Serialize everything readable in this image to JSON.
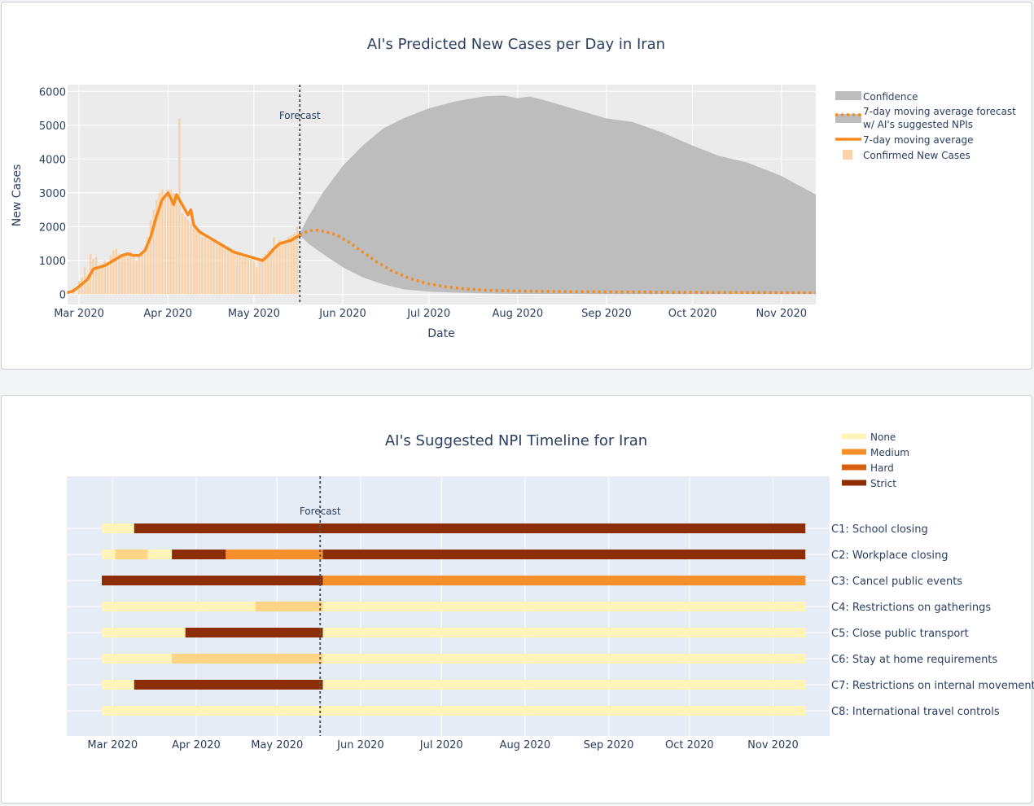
{
  "chart_data": [
    {
      "type": "line",
      "title": "AI's Predicted New Cases per Day in Iran",
      "xlabel": "Date",
      "ylabel": "New Cases",
      "x_range": [
        "2020-02-26",
        "2020-11-13"
      ],
      "ylim": [
        -300,
        6200
      ],
      "yticks": [
        0,
        1000,
        2000,
        3000,
        4000,
        5000,
        6000
      ],
      "xticks": [
        {
          "date": "2020-03-01",
          "label": "Mar 2020"
        },
        {
          "date": "2020-04-01",
          "label": "Apr 2020"
        },
        {
          "date": "2020-05-01",
          "label": "May 2020"
        },
        {
          "date": "2020-06-01",
          "label": "Jun 2020"
        },
        {
          "date": "2020-07-01",
          "label": "Jul 2020"
        },
        {
          "date": "2020-08-01",
          "label": "Aug 2020"
        },
        {
          "date": "2020-09-01",
          "label": "Sep 2020"
        },
        {
          "date": "2020-10-01",
          "label": "Oct 2020"
        },
        {
          "date": "2020-11-01",
          "label": "Nov 2020"
        }
      ],
      "forecast_date": "2020-05-17",
      "forecast_label": "Forecast",
      "grid": true,
      "legend_position": "right",
      "legend": [
        {
          "name": "Confidence",
          "kind": "area"
        },
        {
          "name": "7-day moving average forecast",
          "name_line2": "w/ AI's suggested NPIs",
          "kind": "dotted"
        },
        {
          "name": "7-day moving average",
          "kind": "line"
        },
        {
          "name": "Confirmed New Cases",
          "kind": "bar"
        }
      ],
      "colors": {
        "plot_bg": "#ebebeb",
        "confidence": "#bdbdbd",
        "forecast": "#f58a1f",
        "moving_average": "#f58a1f",
        "bars": "#fad2a9"
      },
      "confirmed_new_cases": {
        "x": [
          "2020-02-26",
          "2020-02-28",
          "2020-03-01",
          "2020-03-02",
          "2020-03-03",
          "2020-03-04",
          "2020-03-05",
          "2020-03-06",
          "2020-03-07",
          "2020-03-08",
          "2020-03-09",
          "2020-03-10",
          "2020-03-11",
          "2020-03-12",
          "2020-03-13",
          "2020-03-14",
          "2020-03-15",
          "2020-03-16",
          "2020-03-17",
          "2020-03-18",
          "2020-03-19",
          "2020-03-20",
          "2020-03-21",
          "2020-03-22",
          "2020-03-23",
          "2020-03-24",
          "2020-03-25",
          "2020-03-26",
          "2020-03-27",
          "2020-03-28",
          "2020-03-29",
          "2020-03-30",
          "2020-03-31",
          "2020-04-01",
          "2020-04-02",
          "2020-04-03",
          "2020-04-04",
          "2020-04-05",
          "2020-04-06",
          "2020-04-07",
          "2020-04-08",
          "2020-04-09",
          "2020-04-10",
          "2020-04-11",
          "2020-04-12",
          "2020-04-13",
          "2020-04-14",
          "2020-04-15",
          "2020-04-16",
          "2020-04-17",
          "2020-04-18",
          "2020-04-19",
          "2020-04-20",
          "2020-04-21",
          "2020-04-22",
          "2020-04-23",
          "2020-04-24",
          "2020-04-25",
          "2020-04-26",
          "2020-04-27",
          "2020-04-28",
          "2020-04-29",
          "2020-04-30",
          "2020-05-01",
          "2020-05-02",
          "2020-05-03",
          "2020-05-04",
          "2020-05-05",
          "2020-05-06",
          "2020-05-07",
          "2020-05-08",
          "2020-05-09",
          "2020-05-10",
          "2020-05-11",
          "2020-05-12",
          "2020-05-13",
          "2020-05-14",
          "2020-05-15",
          "2020-05-16"
        ],
        "values": [
          100,
          200,
          400,
          500,
          800,
          600,
          1200,
          1050,
          1100,
          750,
          900,
          1000,
          950,
          1150,
          1300,
          1350,
          1200,
          1100,
          1150,
          1200,
          1250,
          1100,
          1000,
          1100,
          1200,
          1400,
          1700,
          2200,
          2500,
          2800,
          3000,
          3100,
          2900,
          3100,
          3100,
          3000,
          2900,
          5200,
          2400,
          2300,
          2200,
          2100,
          2000,
          1900,
          1800,
          1700,
          1700,
          1600,
          1650,
          1600,
          1550,
          1500,
          1450,
          1400,
          1350,
          1300,
          1250,
          1200,
          1150,
          1100,
          1100,
          1050,
          1050,
          1000,
          800,
          1000,
          1100,
          1200,
          1300,
          1350,
          1700,
          1500,
          1600,
          1500,
          1600,
          1700,
          1750,
          1800,
          2000
        ]
      },
      "moving_average": {
        "x": [
          "2020-02-26",
          "2020-02-28",
          "2020-03-02",
          "2020-03-04",
          "2020-03-06",
          "2020-03-08",
          "2020-03-10",
          "2020-03-12",
          "2020-03-14",
          "2020-03-16",
          "2020-03-18",
          "2020-03-20",
          "2020-03-22",
          "2020-03-24",
          "2020-03-26",
          "2020-03-28",
          "2020-03-30",
          "2020-04-01",
          "2020-04-02",
          "2020-04-03",
          "2020-04-04",
          "2020-04-05",
          "2020-04-06",
          "2020-04-07",
          "2020-04-08",
          "2020-04-09",
          "2020-04-10",
          "2020-04-11",
          "2020-04-12",
          "2020-04-14",
          "2020-04-16",
          "2020-04-18",
          "2020-04-20",
          "2020-04-22",
          "2020-04-24",
          "2020-04-26",
          "2020-04-28",
          "2020-04-30",
          "2020-05-02",
          "2020-05-04",
          "2020-05-06",
          "2020-05-08",
          "2020-05-10",
          "2020-05-12",
          "2020-05-14",
          "2020-05-16",
          "2020-05-17"
        ],
        "values": [
          50,
          100,
          300,
          450,
          750,
          800,
          850,
          950,
          1050,
          1150,
          1200,
          1150,
          1150,
          1300,
          1700,
          2300,
          2800,
          3000,
          2850,
          2650,
          2950,
          2800,
          2650,
          2500,
          2350,
          2500,
          2050,
          1950,
          1850,
          1750,
          1650,
          1550,
          1450,
          1350,
          1250,
          1200,
          1150,
          1100,
          1050,
          1000,
          1150,
          1350,
          1500,
          1550,
          1600,
          1700,
          1750
        ]
      },
      "forecast": {
        "x": [
          "2020-05-17",
          "2020-05-20",
          "2020-05-23",
          "2020-05-26",
          "2020-05-30",
          "2020-06-03",
          "2020-06-08",
          "2020-06-13",
          "2020-06-18",
          "2020-06-24",
          "2020-06-30",
          "2020-07-06",
          "2020-07-15",
          "2020-07-25",
          "2020-08-05",
          "2020-08-20",
          "2020-09-05",
          "2020-10-01",
          "2020-10-25",
          "2020-11-13"
        ],
        "values": [
          1750,
          1880,
          1900,
          1850,
          1750,
          1550,
          1250,
          950,
          700,
          480,
          330,
          230,
          150,
          110,
          90,
          80,
          70,
          60,
          55,
          50
        ]
      },
      "confidence": {
        "x": [
          "2020-05-17",
          "2020-05-20",
          "2020-05-25",
          "2020-06-01",
          "2020-06-08",
          "2020-06-15",
          "2020-06-22",
          "2020-07-01",
          "2020-07-10",
          "2020-07-20",
          "2020-07-27",
          "2020-08-01",
          "2020-08-05",
          "2020-08-10",
          "2020-08-20",
          "2020-09-01",
          "2020-09-10",
          "2020-09-20",
          "2020-10-01",
          "2020-10-10",
          "2020-10-20",
          "2020-11-01",
          "2020-11-13"
        ],
        "upper": [
          1800,
          2300,
          3000,
          3800,
          4400,
          4900,
          5200,
          5500,
          5700,
          5850,
          5880,
          5800,
          5850,
          5750,
          5500,
          5200,
          5100,
          4800,
          4400,
          4100,
          3900,
          3500,
          2950
        ],
        "lower": [
          1750,
          1500,
          1200,
          800,
          500,
          300,
          150,
          80,
          50,
          30,
          20,
          15,
          15,
          10,
          10,
          5,
          5,
          5,
          5,
          5,
          5,
          5,
          5
        ]
      }
    },
    {
      "type": "timeline",
      "title": "AI's Suggested NPI Timeline for Iran",
      "x_range": [
        "2020-02-13",
        "2020-11-22"
      ],
      "forecast_date": "2020-05-17",
      "forecast_label": "Forecast",
      "xticks": [
        {
          "date": "2020-03-01",
          "label": "Mar 2020"
        },
        {
          "date": "2020-04-01",
          "label": "Apr 2020"
        },
        {
          "date": "2020-05-01",
          "label": "May 2020"
        },
        {
          "date": "2020-06-01",
          "label": "Jun 2020"
        },
        {
          "date": "2020-07-01",
          "label": "Jul 2020"
        },
        {
          "date": "2020-08-01",
          "label": "Aug 2020"
        },
        {
          "date": "2020-09-01",
          "label": "Sep 2020"
        },
        {
          "date": "2020-10-01",
          "label": "Oct 2020"
        },
        {
          "date": "2020-11-01",
          "label": "Nov 2020"
        }
      ],
      "grid": true,
      "legend_position": "top-right",
      "legend": [
        {
          "name": "None",
          "color": "#fff4b8"
        },
        {
          "name": "Medium",
          "color": "#f5902a"
        },
        {
          "name": "Hard",
          "color": "#d65f12"
        },
        {
          "name": "Strict",
          "color": "#8c2d04"
        }
      ],
      "colors": {
        "plot_bg": "#e5ecf6",
        "None": "#fff4b8",
        "Mild": "#fed485",
        "Medium": "#f5902a",
        "Hard": "#d65f12",
        "Strict": "#8c2d04"
      },
      "rows": [
        {
          "label": "C1: School closing",
          "segments": [
            {
              "start": "2020-02-26",
              "end": "2020-03-09",
              "level": "None"
            },
            {
              "start": "2020-03-09",
              "end": "2020-11-13",
              "level": "Strict"
            }
          ]
        },
        {
          "label": "C2: Workplace closing",
          "segments": [
            {
              "start": "2020-02-26",
              "end": "2020-03-02",
              "level": "None"
            },
            {
              "start": "2020-03-02",
              "end": "2020-03-14",
              "level": "Mild"
            },
            {
              "start": "2020-03-14",
              "end": "2020-03-23",
              "level": "None"
            },
            {
              "start": "2020-03-23",
              "end": "2020-04-12",
              "level": "Strict"
            },
            {
              "start": "2020-04-12",
              "end": "2020-05-18",
              "level": "Medium"
            },
            {
              "start": "2020-05-18",
              "end": "2020-11-13",
              "level": "Strict"
            }
          ]
        },
        {
          "label": "C3: Cancel public events",
          "segments": [
            {
              "start": "2020-02-26",
              "end": "2020-05-18",
              "level": "Strict"
            },
            {
              "start": "2020-05-18",
              "end": "2020-11-13",
              "level": "Medium"
            }
          ]
        },
        {
          "label": "C4: Restrictions on gatherings",
          "segments": [
            {
              "start": "2020-02-26",
              "end": "2020-04-23",
              "level": "None"
            },
            {
              "start": "2020-04-23",
              "end": "2020-05-18",
              "level": "Mild"
            },
            {
              "start": "2020-05-18",
              "end": "2020-11-13",
              "level": "None"
            }
          ]
        },
        {
          "label": "C5: Close public transport",
          "segments": [
            {
              "start": "2020-02-26",
              "end": "2020-03-28",
              "level": "None"
            },
            {
              "start": "2020-03-28",
              "end": "2020-05-18",
              "level": "Strict"
            },
            {
              "start": "2020-05-18",
              "end": "2020-11-13",
              "level": "None"
            }
          ]
        },
        {
          "label": "C6: Stay at home requirements",
          "segments": [
            {
              "start": "2020-02-26",
              "end": "2020-03-23",
              "level": "None"
            },
            {
              "start": "2020-03-23",
              "end": "2020-05-18",
              "level": "Mild"
            },
            {
              "start": "2020-05-18",
              "end": "2020-11-13",
              "level": "None"
            }
          ]
        },
        {
          "label": "C7: Restrictions on internal movement",
          "segments": [
            {
              "start": "2020-02-26",
              "end": "2020-03-09",
              "level": "None"
            },
            {
              "start": "2020-03-09",
              "end": "2020-05-18",
              "level": "Strict"
            },
            {
              "start": "2020-05-18",
              "end": "2020-11-13",
              "level": "None"
            }
          ]
        },
        {
          "label": "C8: International travel controls",
          "segments": [
            {
              "start": "2020-02-26",
              "end": "2020-11-13",
              "level": "None"
            }
          ]
        }
      ]
    }
  ]
}
